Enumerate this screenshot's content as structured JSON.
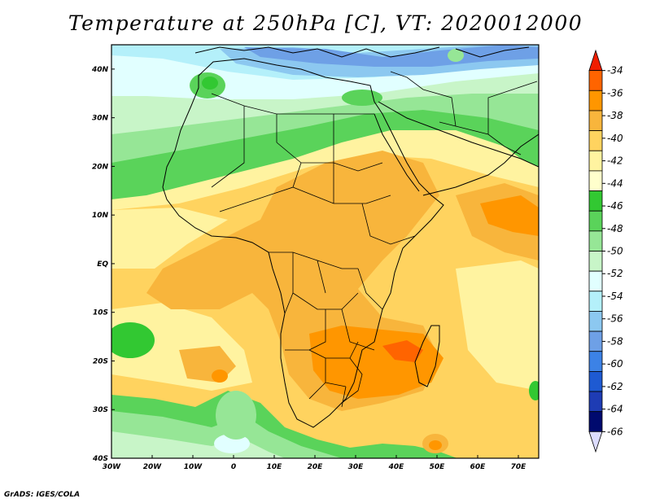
{
  "title": "Temperature at 250hPa [C], VT: 2020012000",
  "credit": "GrADS: IGES/COLA",
  "map": {
    "lon_range": [
      -30,
      75
    ],
    "lat_range": [
      -40,
      45
    ],
    "lon_ticks": [
      {
        "value": -30,
        "label": "30W"
      },
      {
        "value": -20,
        "label": "20W"
      },
      {
        "value": -10,
        "label": "10W"
      },
      {
        "value": 0,
        "label": "0"
      },
      {
        "value": 10,
        "label": "10E"
      },
      {
        "value": 20,
        "label": "20E"
      },
      {
        "value": 30,
        "label": "30E"
      },
      {
        "value": 40,
        "label": "40E"
      },
      {
        "value": 50,
        "label": "50E"
      },
      {
        "value": 60,
        "label": "60E"
      },
      {
        "value": 70,
        "label": "70E"
      }
    ],
    "lat_ticks": [
      {
        "value": 40,
        "label": "40N"
      },
      {
        "value": 30,
        "label": "30N"
      },
      {
        "value": 20,
        "label": "20N"
      },
      {
        "value": 10,
        "label": "10N"
      },
      {
        "value": 0,
        "label": "EQ"
      },
      {
        "value": -10,
        "label": "10S"
      },
      {
        "value": -20,
        "label": "20S"
      },
      {
        "value": -30,
        "label": "30S"
      },
      {
        "value": -40,
        "label": "40S"
      }
    ]
  },
  "colorbar": {
    "labels": [
      "-34",
      "-36",
      "-38",
      "-40",
      "-42",
      "-44",
      "-46",
      "-48",
      "-50",
      "-52",
      "-54",
      "-56",
      "-58",
      "-60",
      "-62",
      "-64",
      "-66"
    ],
    "colors": [
      "#f01e00",
      "#ff6400",
      "#ff9600",
      "#f8b53c",
      "#ffd35f",
      "#fff3a0",
      "#ffffcc",
      "#32c832",
      "#5ad35a",
      "#96e696",
      "#c8f5c8",
      "#e1ffff",
      "#b4f0fa",
      "#8cc8f0",
      "#6ea0e6",
      "#3c82e6",
      "#1e5ad2",
      "#1e3cb4",
      "#000a6e",
      "#dcdcff"
    ]
  }
}
